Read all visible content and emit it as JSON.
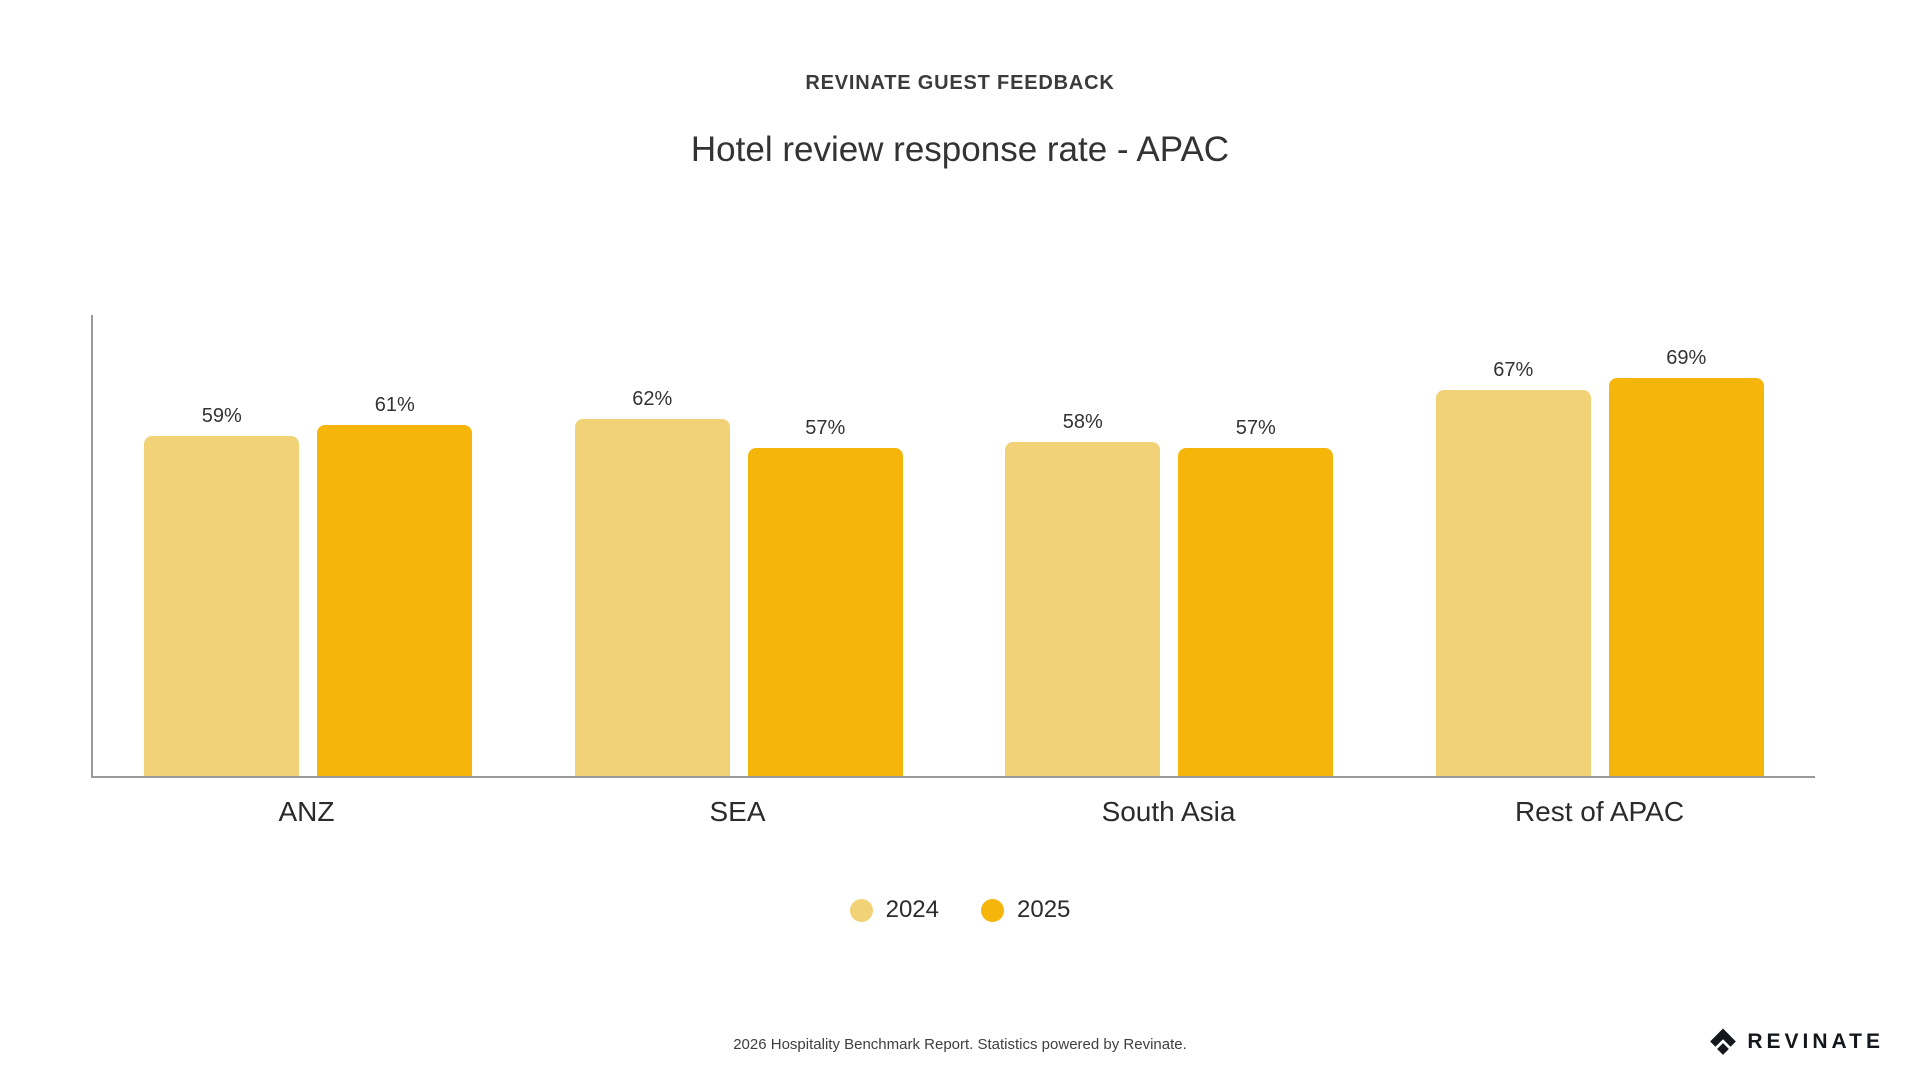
{
  "page": {
    "eyebrow": "REVINATE GUEST FEEDBACK",
    "title": "Hotel review response rate - APAC"
  },
  "chart_data": {
    "type": "bar",
    "title": "Hotel review response rate - APAC",
    "categories": [
      "ANZ",
      "SEA",
      "South Asia",
      "Rest of APAC"
    ],
    "series": [
      {
        "name": "2024",
        "color": "#F2D276",
        "values": [
          59,
          62,
          58,
          67
        ]
      },
      {
        "name": "2025",
        "color": "#F5B50B",
        "values": [
          61,
          57,
          57,
          69
        ]
      }
    ],
    "value_suffix": "%",
    "ylim": [
      0,
      80
    ],
    "grid": false,
    "legend_position": "bottom",
    "xlabel": "",
    "ylabel": ""
  },
  "footer": {
    "attribution": "2026 Hospitality Benchmark Report. Statistics powered by Revinate.",
    "brand_name": "REVINATE",
    "brand_icon": "revinate-diamond-icon"
  },
  "colors": {
    "axis": "#9a9a9a",
    "text_dark": "#3b3b3b",
    "series_2024": "#F2D276",
    "series_2025": "#F5B50B",
    "brand": "#14171c"
  }
}
